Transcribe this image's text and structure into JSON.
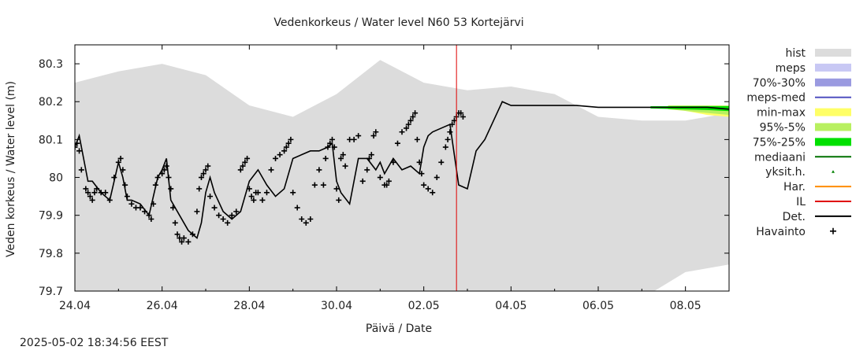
{
  "chart_data": {
    "type": "line",
    "title": "Vedenkorkeus / Water level   N60 53 Kortejärvi",
    "xlabel": "Päivä / Date",
    "ylabel": "Veden korkeus / Water level (m)",
    "x_ticks": [
      "24.04",
      "26.04",
      "28.04",
      "30.04",
      "02.05",
      "04.05",
      "06.05",
      "08.05"
    ],
    "y_ticks": [
      "79.7",
      "79.8",
      "79.9",
      "80",
      "80.1",
      "80.2",
      "80.3"
    ],
    "x_range": [
      "2025-04-24",
      "2025-05-09"
    ],
    "ylim": [
      79.7,
      80.35
    ],
    "grid": false,
    "legend_position": "right",
    "forecast_start": "2025-05-02 18:00",
    "colors": {
      "hist": "#dcdcdc",
      "meps": "#c8c8f4",
      "p70_30": "#9a9ae0",
      "meps_med": "#5050c0",
      "min_max": "#ffff66",
      "p95_5": "#b8f060",
      "p75_25": "#00e000",
      "mediaani": "#007000",
      "yksit": "#008000",
      "har": "#ff8c00",
      "il": "#e00000",
      "det": "#000000",
      "havainto": "#000000",
      "now_line": "#e00000"
    },
    "series": [
      {
        "name": "hist",
        "type": "band",
        "x": [
          0,
          1,
          2,
          3,
          4,
          5,
          6,
          7,
          8,
          9,
          10,
          11,
          12,
          13,
          14,
          15
        ],
        "lower": [
          79.7,
          79.7,
          79.7,
          79.7,
          79.7,
          79.7,
          79.7,
          79.7,
          79.7,
          79.7,
          79.7,
          79.7,
          79.7,
          79.68,
          79.75,
          79.77
        ],
        "upper": [
          80.25,
          80.28,
          80.3,
          80.27,
          80.19,
          80.16,
          80.22,
          80.31,
          80.25,
          80.23,
          80.24,
          80.22,
          80.16,
          80.15,
          80.15,
          80.17
        ]
      },
      {
        "name": "Det.",
        "x": [
          0.0,
          0.1,
          0.2,
          0.3,
          0.4,
          0.6,
          0.8,
          1.0,
          1.1,
          1.2,
          1.3,
          1.5,
          1.7,
          1.8,
          1.9,
          2.0,
          2.1,
          2.2,
          2.4,
          2.6,
          2.8,
          2.9,
          3.0,
          3.1,
          3.2,
          3.4,
          3.6,
          3.8,
          4.0,
          4.2,
          4.4,
          4.6,
          4.8,
          5.0,
          5.2,
          5.4,
          5.6,
          5.8,
          5.9,
          6.0,
          6.1,
          6.3,
          6.5,
          6.7,
          6.9,
          7.0,
          7.1,
          7.3,
          7.5,
          7.7,
          7.9,
          8.0,
          8.1,
          8.2,
          8.4,
          8.6,
          8.8,
          9.0,
          9.2,
          9.4,
          9.6,
          9.8,
          10.0,
          10.2,
          10.4,
          10.6,
          11.0,
          11.5,
          12.0,
          12.5,
          13.0,
          13.5,
          14.0,
          14.5,
          15.0
        ],
        "y": [
          80.08,
          80.11,
          80.05,
          79.99,
          79.99,
          79.96,
          79.94,
          80.04,
          80.0,
          79.94,
          79.94,
          79.93,
          79.9,
          79.95,
          80.0,
          80.02,
          80.05,
          79.94,
          79.9,
          79.86,
          79.84,
          79.88,
          79.96,
          80.0,
          79.96,
          79.91,
          79.89,
          79.91,
          79.99,
          80.02,
          79.98,
          79.95,
          79.97,
          80.05,
          80.06,
          80.07,
          80.07,
          80.08,
          80.09,
          79.99,
          79.96,
          79.93,
          80.05,
          80.05,
          80.02,
          80.04,
          80.01,
          80.05,
          80.02,
          80.03,
          80.01,
          80.08,
          80.11,
          80.12,
          80.13,
          80.14,
          79.98,
          79.97,
          80.07,
          80.1,
          80.15,
          80.2,
          80.19,
          80.19,
          80.19,
          80.19,
          80.19,
          80.19,
          80.185,
          80.185,
          80.185,
          80.185,
          80.185,
          80.185,
          80.18
        ]
      },
      {
        "name": "Havainto",
        "type": "scatter",
        "x": [
          0.0,
          0.05,
          0.1,
          0.15,
          0.25,
          0.3,
          0.35,
          0.4,
          0.45,
          0.5,
          0.6,
          0.7,
          0.8,
          0.9,
          1.0,
          1.05,
          1.1,
          1.15,
          1.2,
          1.3,
          1.4,
          1.5,
          1.6,
          1.7,
          1.75,
          1.8,
          1.85,
          1.9,
          2.0,
          2.05,
          2.1,
          2.15,
          2.2,
          2.25,
          2.3,
          2.35,
          2.4,
          2.45,
          2.5,
          2.6,
          2.7,
          2.8,
          2.85,
          2.9,
          2.95,
          3.0,
          3.05,
          3.1,
          3.2,
          3.3,
          3.4,
          3.5,
          3.6,
          3.7,
          3.8,
          3.85,
          3.9,
          3.95,
          4.0,
          4.05,
          4.1,
          4.15,
          4.2,
          4.3,
          4.4,
          4.5,
          4.6,
          4.7,
          4.8,
          4.85,
          4.9,
          4.95,
          5.0,
          5.1,
          5.2,
          5.3,
          5.4,
          5.5,
          5.6,
          5.7,
          5.75,
          5.8,
          5.85,
          5.9,
          5.95,
          6.0,
          6.05,
          6.1,
          6.15,
          6.2,
          6.3,
          6.4,
          6.5,
          6.6,
          6.7,
          6.75,
          6.8,
          6.85,
          6.9,
          7.0,
          7.1,
          7.15,
          7.2,
          7.3,
          7.4,
          7.5,
          7.6,
          7.65,
          7.7,
          7.75,
          7.8,
          7.85,
          7.9,
          7.95,
          8.0,
          8.1,
          8.2,
          8.3,
          8.4,
          8.5,
          8.55,
          8.6,
          8.65,
          8.7,
          8.75,
          8.8,
          8.85,
          8.9
        ],
        "y": [
          80.08,
          80.09,
          80.07,
          80.02,
          79.97,
          79.96,
          79.95,
          79.94,
          79.96,
          79.97,
          79.96,
          79.96,
          79.94,
          80.0,
          80.04,
          80.05,
          80.02,
          79.98,
          79.95,
          79.93,
          79.92,
          79.92,
          79.91,
          79.9,
          79.89,
          79.93,
          79.98,
          80.0,
          80.01,
          80.02,
          80.03,
          80.0,
          79.97,
          79.92,
          79.88,
          79.85,
          79.84,
          79.83,
          79.84,
          79.83,
          79.85,
          79.91,
          79.97,
          80.0,
          80.01,
          80.02,
          80.03,
          79.95,
          79.92,
          79.9,
          79.89,
          79.88,
          79.9,
          79.91,
          80.02,
          80.03,
          80.04,
          80.05,
          79.97,
          79.95,
          79.94,
          79.96,
          79.96,
          79.94,
          79.96,
          80.02,
          80.05,
          80.06,
          80.07,
          80.08,
          80.09,
          80.1,
          79.96,
          79.92,
          79.89,
          79.88,
          79.89,
          79.98,
          80.02,
          79.98,
          80.05,
          80.08,
          80.09,
          80.1,
          80.08,
          79.97,
          79.94,
          80.05,
          80.06,
          80.03,
          80.1,
          80.1,
          80.11,
          79.99,
          80.02,
          80.05,
          80.06,
          80.11,
          80.12,
          80.0,
          79.98,
          79.98,
          79.99,
          80.04,
          80.09,
          80.12,
          80.13,
          80.14,
          80.15,
          80.16,
          80.17,
          80.1,
          80.04,
          80.01,
          79.98,
          79.97,
          79.96,
          80.0,
          80.04,
          80.08,
          80.1,
          80.12,
          80.14,
          80.15,
          80.16,
          80.17,
          80.17,
          80.16
        ]
      },
      {
        "name": "min-max",
        "type": "band",
        "x": [
          13.8,
          14.5,
          15.0
        ],
        "lower": [
          80.18,
          80.165,
          80.16
        ],
        "upper": [
          80.19,
          80.19,
          80.19
        ]
      },
      {
        "name": "95%-5%",
        "type": "band",
        "x": [
          13.6,
          14.5,
          15.0
        ],
        "lower": [
          80.18,
          80.17,
          80.165
        ],
        "upper": [
          80.19,
          80.19,
          80.19
        ]
      },
      {
        "name": "75%-25%",
        "type": "band",
        "x": [
          13.2,
          14.5,
          15.0
        ],
        "lower": [
          80.182,
          80.178,
          80.175
        ],
        "upper": [
          80.188,
          80.188,
          80.188
        ]
      }
    ]
  },
  "legend": [
    {
      "label": "hist",
      "kind": "box",
      "color": "#dcdcdc"
    },
    {
      "label": "meps",
      "kind": "box",
      "color": "#c8c8f4"
    },
    {
      "label": "70%-30%",
      "kind": "box",
      "color": "#9a9ae0"
    },
    {
      "label": "meps-med",
      "kind": "line",
      "color": "#5050c0"
    },
    {
      "label": "min-max",
      "kind": "box",
      "color": "#ffff66"
    },
    {
      "label": "95%-5%",
      "kind": "box",
      "color": "#b8f060"
    },
    {
      "label": "75%-25%",
      "kind": "box",
      "color": "#00e000"
    },
    {
      "label": "mediaani",
      "kind": "line",
      "color": "#007000"
    },
    {
      "label": "yksit.h.",
      "kind": "dot",
      "color": "#008000"
    },
    {
      "label": "Har.",
      "kind": "line",
      "color": "#ff8c00"
    },
    {
      "label": "IL",
      "kind": "line",
      "color": "#e00000"
    },
    {
      "label": "Det.",
      "kind": "line",
      "color": "#000000"
    },
    {
      "label": "Havainto",
      "kind": "plus",
      "color": "#000000"
    }
  ],
  "timestamp": "2025-05-02 18:34:56 EEST"
}
